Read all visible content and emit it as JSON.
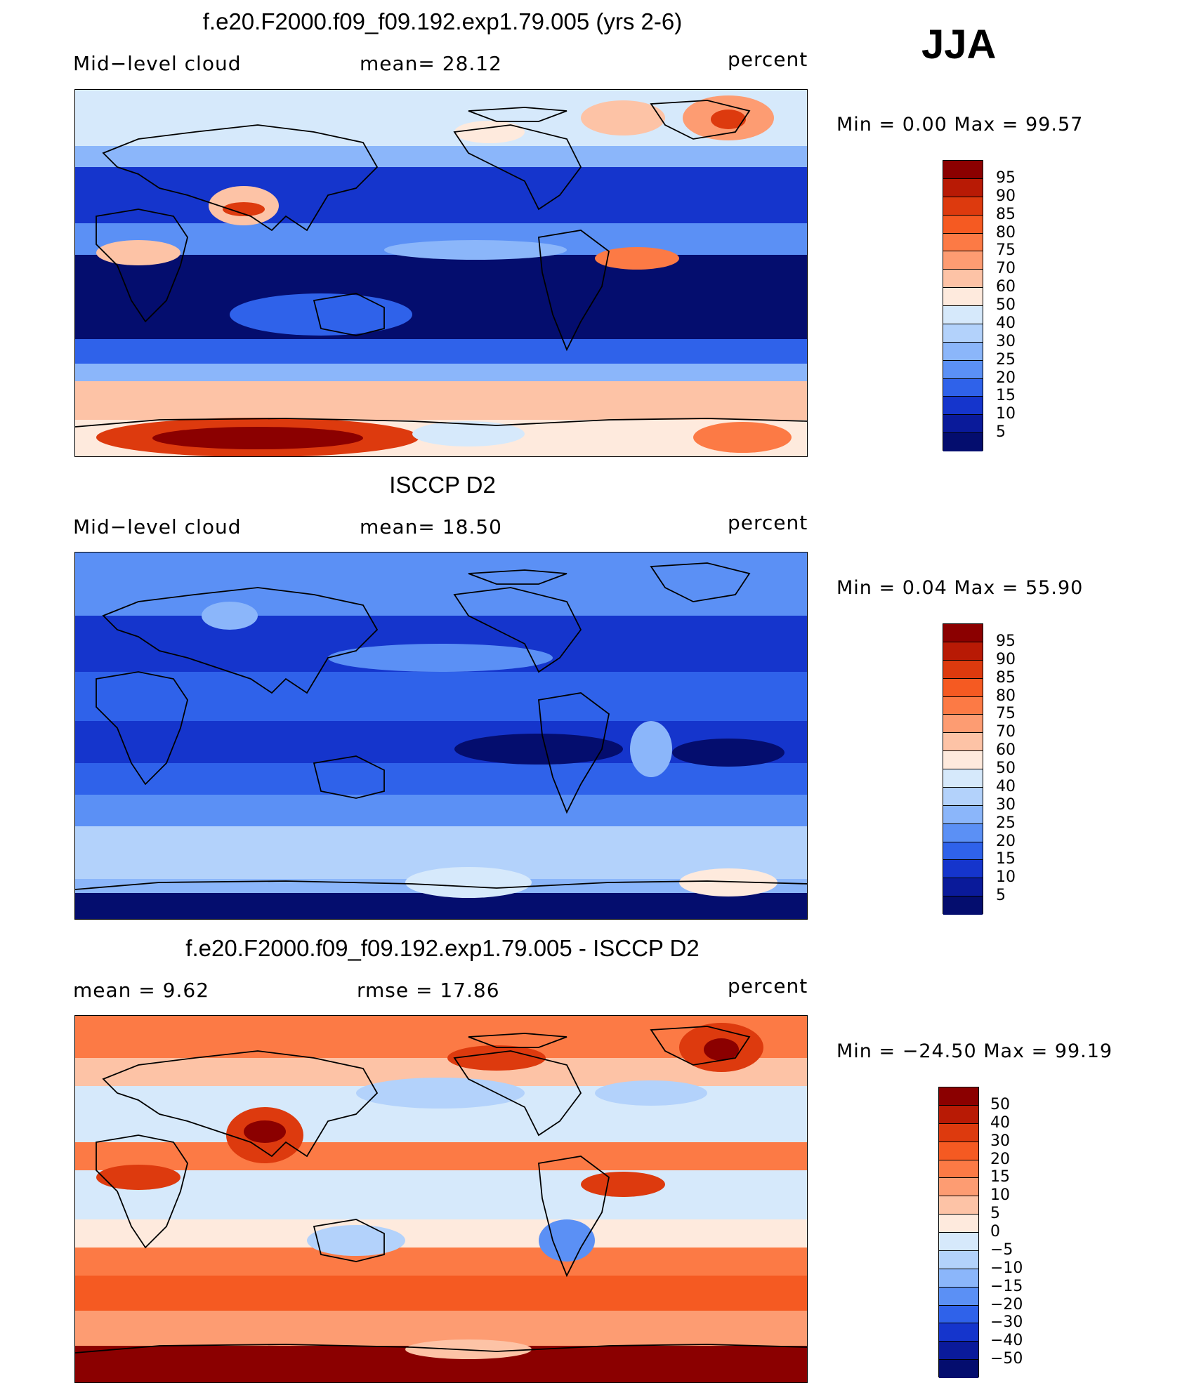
{
  "season": "JJA",
  "panels": [
    {
      "title": "f.e20.F2000.f09_f09.192.exp1.79.005 (yrs 2-6)",
      "left_text": "Mid−level cloud",
      "mid_text": "mean=   28.12",
      "right_text": "percent",
      "minmax": "Min  =    0.00  Max  =   99.57",
      "palette": "abs",
      "labels": [
        "95",
        "90",
        "85",
        "80",
        "75",
        "70",
        "60",
        "50",
        "40",
        "30",
        "25",
        "20",
        "15",
        "10",
        "5"
      ]
    },
    {
      "title": "ISCCP D2",
      "left_text": "Mid−level cloud",
      "mid_text": "mean=   18.50",
      "right_text": "percent",
      "minmax": "Min  =    0.04  Max  =   55.90",
      "palette": "abs",
      "labels": [
        "95",
        "90",
        "85",
        "80",
        "75",
        "70",
        "60",
        "50",
        "40",
        "30",
        "25",
        "20",
        "15",
        "10",
        "5"
      ]
    },
    {
      "title": "f.e20.F2000.f09_f09.192.exp1.79.005 - ISCCP D2",
      "left_text": "mean  =     9.62",
      "mid_text": "rmse  =    17.86",
      "right_text": "percent",
      "minmax": "Min  = −24.50  Max  =   99.19",
      "palette": "diff",
      "labels": [
        "50",
        "40",
        "30",
        "20",
        "15",
        "10",
        "5",
        "0",
        "−5",
        "−10",
        "−15",
        "−20",
        "−30",
        "−40",
        "−50"
      ]
    }
  ],
  "colors": {
    "abs_palette": [
      "#8b0000",
      "#b81a05",
      "#dd3a0e",
      "#f55a22",
      "#fc7a45",
      "#fd9c72",
      "#fdc3a6",
      "#feeadd",
      "#d6e9fb",
      "#b3d2fb",
      "#8bb6fa",
      "#5b90f5",
      "#2f62ea",
      "#1535cc",
      "#0a1a9a",
      "#040d6e"
    ],
    "diff_palette": [
      "#8b0000",
      "#b81a05",
      "#dd3a0e",
      "#f55a22",
      "#fc7a45",
      "#fd9c72",
      "#fdc3a6",
      "#feeadd",
      "#d6e9fb",
      "#b3d2fb",
      "#8bb6fa",
      "#5b90f5",
      "#2f62ea",
      "#1535cc",
      "#0a1a9a",
      "#040d6e"
    ]
  }
}
